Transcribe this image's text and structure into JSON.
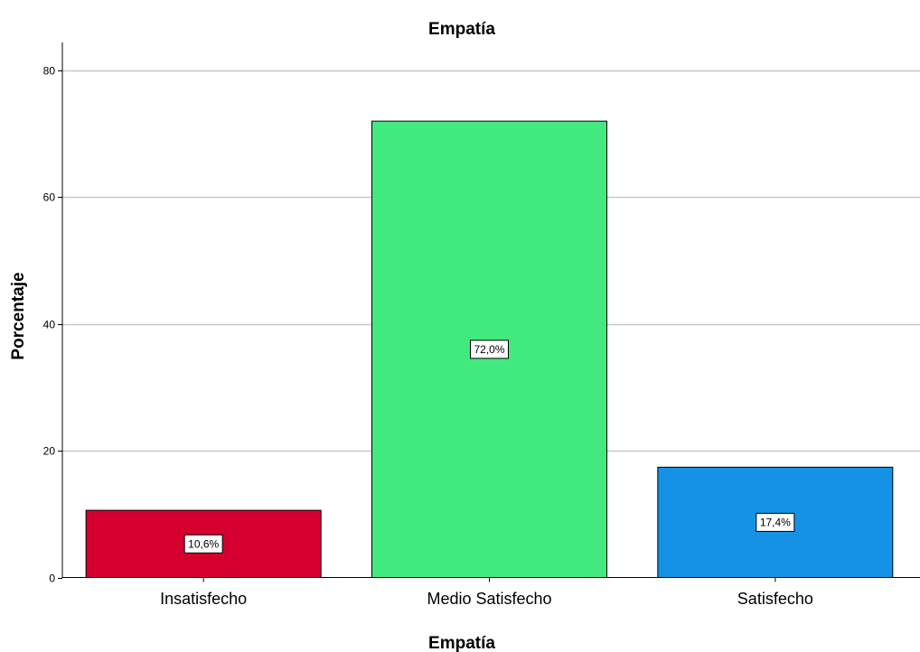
{
  "chart_data": {
    "type": "bar",
    "title": "Empatía",
    "xlabel": "Empatía",
    "ylabel": "Porcentaje",
    "categories": [
      "Insatisfecho",
      "Medio Satisfecho",
      "Satisfecho"
    ],
    "values": [
      10.6,
      72.0,
      17.4
    ],
    "data_labels": [
      "10,6%",
      "72,0%",
      "17,4%"
    ],
    "colors": [
      "#d6002f",
      "#42e97f",
      "#1592e6"
    ],
    "ylim": [
      0,
      80
    ],
    "yticks": [
      0,
      20,
      40,
      60,
      80
    ],
    "ytick_labels": [
      "0",
      "20",
      "40",
      "60",
      "80"
    ],
    "grid": true,
    "legend": "none"
  }
}
